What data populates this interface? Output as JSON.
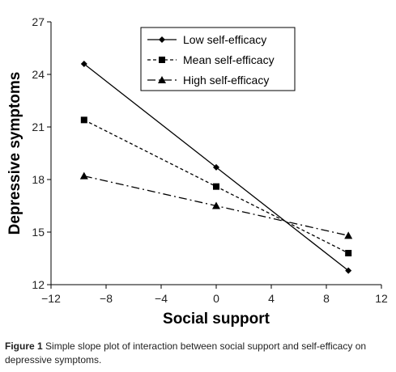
{
  "chart_data": {
    "type": "line",
    "xlabel": "Social support",
    "ylabel": "Depressive symptoms",
    "xlim": [
      -12,
      12
    ],
    "ylim": [
      12,
      27
    ],
    "xticks": [
      -12,
      -8,
      -4,
      0,
      4,
      8,
      12
    ],
    "xtick_labels": [
      "−12",
      "−8",
      "−4",
      "0",
      "4",
      "8",
      "12"
    ],
    "yticks": [
      12,
      15,
      18,
      21,
      24,
      27
    ],
    "ytick_labels": [
      "12",
      "15",
      "18",
      "21",
      "24",
      "27"
    ],
    "x": [
      -9.6,
      0,
      9.6
    ],
    "series": [
      {
        "name": "Low self-efficacy",
        "values": [
          24.6,
          18.7,
          12.8
        ],
        "marker": "diamond",
        "line": "solid"
      },
      {
        "name": "Mean self-efficacy",
        "values": [
          21.4,
          17.6,
          13.8
        ],
        "marker": "square",
        "line": "dashed"
      },
      {
        "name": "High self-efficacy",
        "values": [
          18.2,
          16.5,
          14.8
        ],
        "marker": "triangle",
        "line": "dashdot"
      }
    ],
    "legend_position": "top-right",
    "grid": false
  },
  "caption": {
    "label": "Figure 1",
    "text": "Simple slope plot of interaction between social support and self-efficacy on depressive symptoms."
  }
}
